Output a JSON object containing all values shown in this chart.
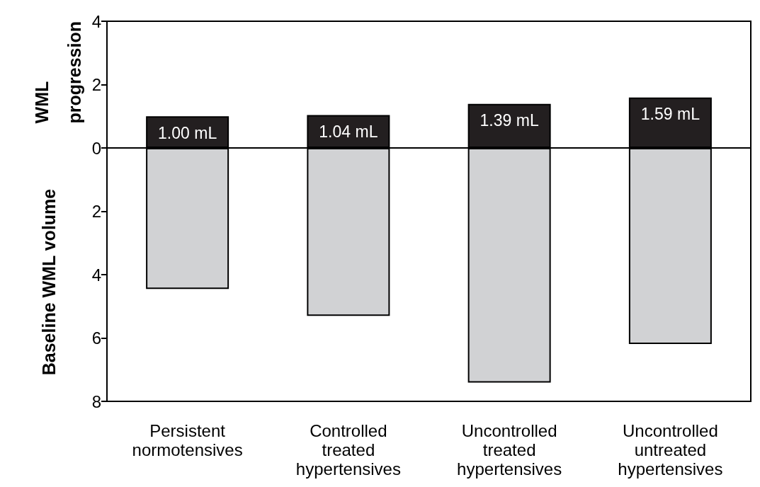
{
  "chart_data": {
    "type": "bar",
    "stacked": true,
    "categories": [
      "Persistent normotensives",
      "Controlled treated hypertensives",
      "Uncontrolled treated hypertensives",
      "Uncontrolled untreated hypertensives"
    ],
    "series": [
      {
        "color": "#d1d2d4",
        "values": [
          -4.45,
          -5.3,
          -7.41,
          -6.19
        ]
      },
      {
        "color": "#231f20",
        "values": [
          1.0,
          1.04,
          1.39,
          1.59
        ],
        "value_labels": [
          "1.00 mL",
          "1.04 mL",
          "1.39 mL",
          "1.59 mL"
        ]
      }
    ],
    "ylabel": "Baseline WML volume",
    "annotations": [
      "WML progression"
    ],
    "ylim": [
      -8,
      4
    ],
    "yticks": [
      {
        "value": -8,
        "label": "8"
      },
      {
        "value": -6,
        "label": "6"
      },
      {
        "value": -4,
        "label": "4"
      },
      {
        "value": -2,
        "label": "2"
      },
      0,
      2,
      4
    ]
  }
}
